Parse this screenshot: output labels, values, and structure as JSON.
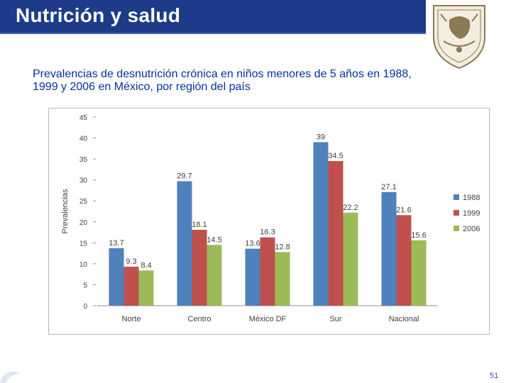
{
  "slide": {
    "title": "Nutrición y salud",
    "subtitle": "Prevalencias de desnutrición crónica en niños menores de 5 años en 1988, 1999 y 2006 en México, por región del país",
    "page_number": "51",
    "accent_color": "#1e3b8a",
    "logo_icon": "university-crest-icon"
  },
  "chart_data": {
    "type": "bar",
    "title": "",
    "xlabel": "",
    "ylabel": "Prevalencias",
    "ylim": [
      0,
      45
    ],
    "yticks": [
      0,
      5,
      10,
      15,
      20,
      25,
      30,
      35,
      40,
      45
    ],
    "categories": [
      "Norte",
      "Centro",
      "México DF",
      "Sur",
      "Nacional"
    ],
    "series": [
      {
        "name": "1988",
        "color": "#4f81bd",
        "values": [
          13.7,
          29.7,
          13.6,
          39,
          27.1
        ]
      },
      {
        "name": "1999",
        "color": "#c0504d",
        "values": [
          9.3,
          18.1,
          16.3,
          34.5,
          21.6
        ]
      },
      {
        "name": "2006",
        "color": "#9bbb59",
        "values": [
          8.4,
          14.5,
          12.8,
          22.2,
          15.6
        ]
      }
    ],
    "legend": "right",
    "grid": false
  }
}
